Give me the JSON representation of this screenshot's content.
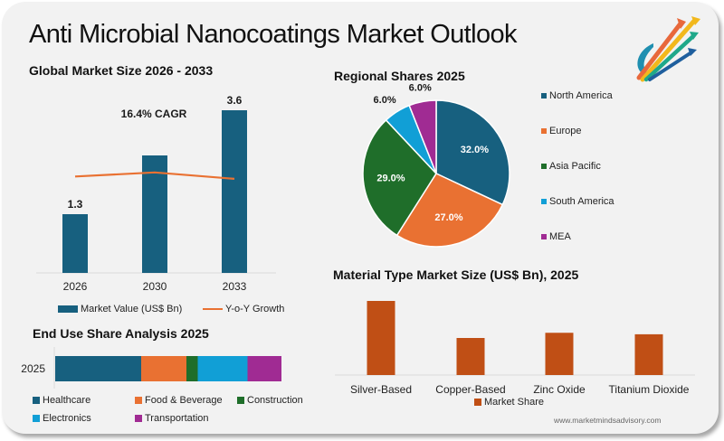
{
  "header": {
    "title": "Anti Microbial Nanocoatings Market Outlook",
    "logo_icon": "rising-arrows-logo-icon"
  },
  "colors": {
    "navy": "#17607f",
    "orange": "#e97132",
    "green": "#1f6e2a",
    "sky": "#119fd6",
    "purple": "#a02b93",
    "rust": "#c04f15",
    "card_bg": "#f2f2f2"
  },
  "footer": {
    "url": "www.marketmindsadvisory.com"
  },
  "chart_data": [
    {
      "id": "global-market-size",
      "type": "bar",
      "title": "Global Market Size 2026 - 2033",
      "categories": [
        "2026",
        "2030",
        "2033"
      ],
      "series": [
        {
          "name": "Market Value (US$ Bn)",
          "type": "bar",
          "values": [
            1.3,
            2.6,
            3.6
          ],
          "data_labels": [
            "1.3",
            "",
            "3.6"
          ],
          "color": "#17607f"
        },
        {
          "name": "Y-o-Y Growth",
          "type": "line",
          "values": [
            0.78,
            0.85,
            0.74
          ],
          "color": "#e97132"
        }
      ],
      "annotation": "16.4% CAGR",
      "xlabel": "",
      "ylabel": "",
      "ylim": [
        0,
        3.6
      ],
      "grid": false,
      "legend": "bottom"
    },
    {
      "id": "regional-shares",
      "type": "pie",
      "title": "Regional Shares 2025",
      "labels": [
        "North America",
        "Europe",
        "Asia Pacific",
        "South America",
        "MEA"
      ],
      "values": [
        32.0,
        27.0,
        29.0,
        6.0,
        6.0
      ],
      "data_labels": [
        "32.0%",
        "27.0%",
        "29.0%",
        "6.0%",
        "6.0%"
      ],
      "colors": [
        "#17607f",
        "#e97132",
        "#1f6e2a",
        "#119fd6",
        "#a02b93"
      ],
      "legend": "right"
    },
    {
      "id": "end-use-share",
      "type": "bar",
      "orientation": "horizontal-stacked",
      "title": "End Use Share Analysis 2025",
      "categories": [
        "2025"
      ],
      "series": [
        {
          "name": "Healthcare",
          "values": [
            38
          ],
          "color": "#17607f"
        },
        {
          "name": "Food & Beverage",
          "values": [
            20
          ],
          "color": "#e97132"
        },
        {
          "name": "Construction",
          "values": [
            5
          ],
          "color": "#1f6e2a"
        },
        {
          "name": "Electronics",
          "values": [
            22
          ],
          "color": "#119fd6"
        },
        {
          "name": "Transportation",
          "values": [
            15
          ],
          "color": "#a02b93"
        }
      ],
      "xlim": [
        0,
        100
      ],
      "legend": "bottom"
    },
    {
      "id": "material-type",
      "type": "bar",
      "title": "Material Type Market Size (US$ Bn), 2025",
      "categories": [
        "Silver-Based",
        "Copper-Based",
        "Zinc Oxide",
        "Titanium Dioxide"
      ],
      "series": [
        {
          "name": "Market Share",
          "values": [
            1.0,
            0.5,
            0.57,
            0.55
          ],
          "color": "#c04f15"
        }
      ],
      "ylim": [
        0,
        1.0
      ],
      "grid": false,
      "legend": "bottom"
    }
  ]
}
